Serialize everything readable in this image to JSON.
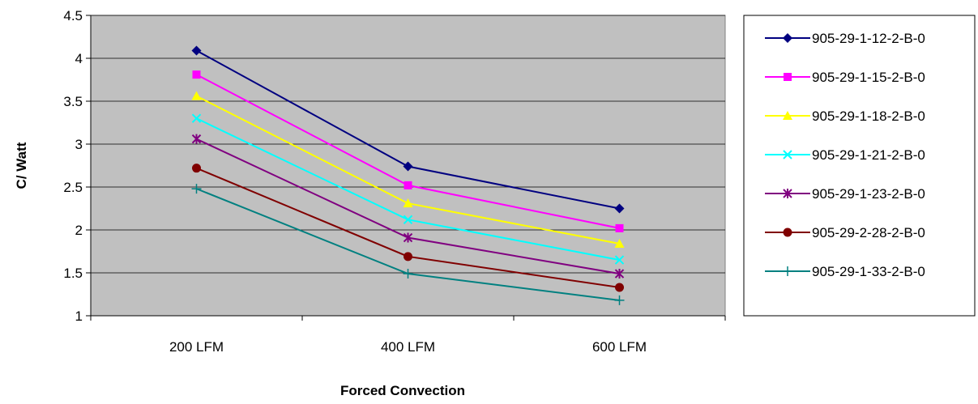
{
  "chart_data": {
    "type": "line",
    "title": "",
    "xlabel": "Forced Convection",
    "ylabel": "C/ Watt",
    "ylim": [
      1,
      4.5
    ],
    "y_ticks": [
      "1",
      "1.5",
      "2",
      "2.5",
      "3",
      "3.5",
      "4",
      "4.5"
    ],
    "categories": [
      "200 LFM",
      "400 LFM",
      "600 LFM"
    ],
    "grid": "horizontal",
    "plot_background": "#c0c0c0",
    "legend_position": "right",
    "series": [
      {
        "name": "905-29-1-12-2-B-0",
        "values": [
          4.09,
          2.74,
          2.25
        ],
        "color": "#000080",
        "marker": "diamond"
      },
      {
        "name": "905-29-1-15-2-B-0",
        "values": [
          3.81,
          2.52,
          2.02
        ],
        "color": "#ff00ff",
        "marker": "square"
      },
      {
        "name": "905-29-1-18-2-B-0",
        "values": [
          3.56,
          2.31,
          1.84
        ],
        "color": "#ffff00",
        "marker": "triangle"
      },
      {
        "name": "905-29-1-21-2-B-0",
        "values": [
          3.3,
          2.12,
          1.65
        ],
        "color": "#00ffff",
        "marker": "x"
      },
      {
        "name": "905-29-1-23-2-B-0",
        "values": [
          3.06,
          1.91,
          1.49
        ],
        "color": "#800080",
        "marker": "asterisk"
      },
      {
        "name": "905-29-2-28-2-B-0",
        "values": [
          2.72,
          1.69,
          1.33
        ],
        "color": "#800000",
        "marker": "circle"
      },
      {
        "name": "905-29-1-33-2-B-0",
        "values": [
          2.48,
          1.49,
          1.18
        ],
        "color": "#008080",
        "marker": "plus"
      }
    ]
  }
}
